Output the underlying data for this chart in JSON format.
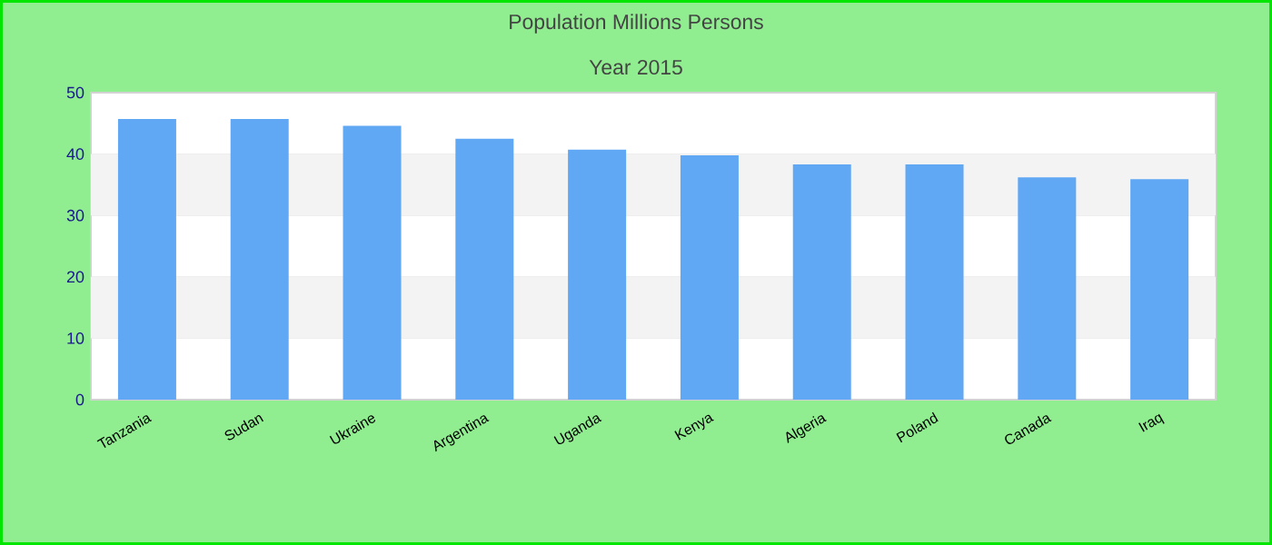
{
  "chart_data": {
    "type": "bar",
    "title": "Population Millions Persons",
    "subtitle": "Year 2015",
    "categories": [
      "Tanzania",
      "Sudan",
      "Ukraine",
      "Argentina",
      "Uganda",
      "Kenya",
      "Algeria",
      "Poland",
      "Canada",
      "Iraq"
    ],
    "values": [
      45.7,
      45.7,
      44.6,
      42.5,
      40.7,
      39.8,
      38.3,
      38.3,
      36.2,
      35.9
    ],
    "color": "#60a8f4",
    "ylim": [
      0,
      50
    ],
    "yticks": [
      0,
      10,
      20,
      30,
      40,
      50
    ],
    "grid": "y"
  }
}
